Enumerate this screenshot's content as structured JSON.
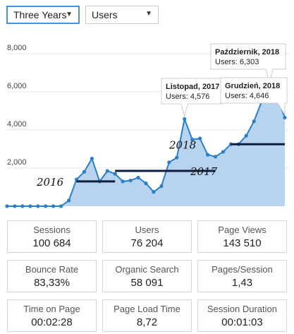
{
  "controls": {
    "period": {
      "value": "Three Years"
    },
    "metric": {
      "value": "Users"
    }
  },
  "chart_data": {
    "type": "area",
    "title": "",
    "xlabel": "",
    "ylabel": "",
    "y_ticks": [
      "2,000",
      "4,000",
      "6,000",
      "8,000"
    ],
    "ylim": [
      0,
      8000
    ],
    "series": [
      {
        "values": [
          0,
          0,
          0,
          0,
          0,
          0,
          0,
          0,
          300,
          1400,
          1800,
          2500,
          1300,
          1850,
          1700,
          1300,
          1350,
          1500,
          1200,
          750,
          1050,
          2300,
          2550,
          4576,
          3500,
          3550,
          2700,
          2600,
          2850,
          3250,
          3250,
          3700,
          4450,
          5500,
          6303,
          5750,
          4646
        ]
      }
    ],
    "tooltips": [
      {
        "title": "Listopad, 2017",
        "body": "Users: 4,576"
      },
      {
        "title": "Październik, 2018",
        "body": "Users: 6,303"
      },
      {
        "title": "Grudzień, 2018",
        "body": "Users: 4,646"
      }
    ],
    "annotations": [
      "2016",
      "2017",
      "2018"
    ]
  },
  "stats": [
    {
      "label": "Sessions",
      "value": "100 684"
    },
    {
      "label": "Users",
      "value": "76 204"
    },
    {
      "label": "Page Views",
      "value": "143 510"
    },
    {
      "label": "Bounce Rate",
      "value": "83,33%"
    },
    {
      "label": "Organic Search",
      "value": "58 091"
    },
    {
      "label": "Pages/Session",
      "value": "1,43"
    },
    {
      "label": "Time on Page",
      "value": "00:02:28"
    },
    {
      "label": "Page Load Time",
      "value": "8,72"
    },
    {
      "label": "Session Duration",
      "value": "00:01:03"
    }
  ],
  "colors": {
    "line": "#2a7fc9",
    "area": "#b7d3ee",
    "marker": "#0d1e3d"
  }
}
